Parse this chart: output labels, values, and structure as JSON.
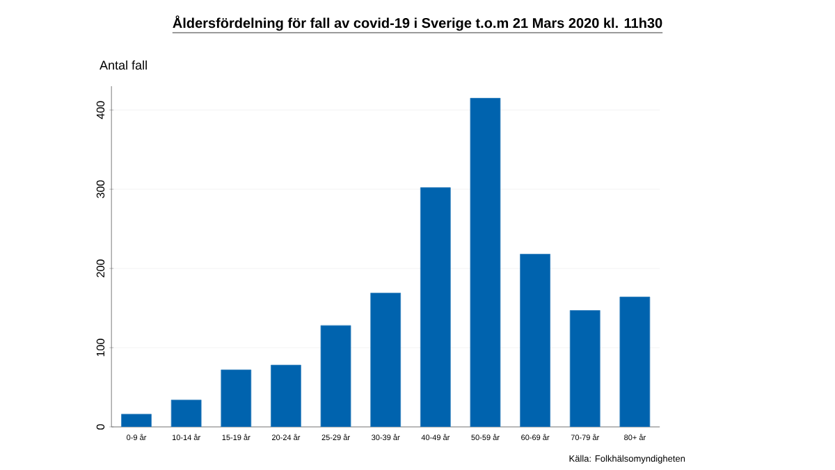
{
  "chart_data": {
    "type": "bar",
    "title": "Åldersfördelning för fall av covid-19 i Sverige t.o.m 21 Mars 2020 kl. 11h30",
    "ylabel": "Antal fall",
    "categories": [
      "0-9 år",
      "10-14 år",
      "15-19 år",
      "20-24 år",
      "25-29 år",
      "30-39 år",
      "40-49 år",
      "50-59 år",
      "60-69 år",
      "70-79 år",
      "80+ år"
    ],
    "values": [
      16,
      34,
      72,
      78,
      128,
      169,
      302,
      415,
      218,
      147,
      164
    ],
    "color": "#0063ae",
    "ylim": [
      0,
      430
    ],
    "yticks": [
      0,
      100,
      200,
      300,
      400
    ],
    "grid": "y",
    "annotations": [
      "Källa: Folkhälsomyndigheten"
    ]
  }
}
